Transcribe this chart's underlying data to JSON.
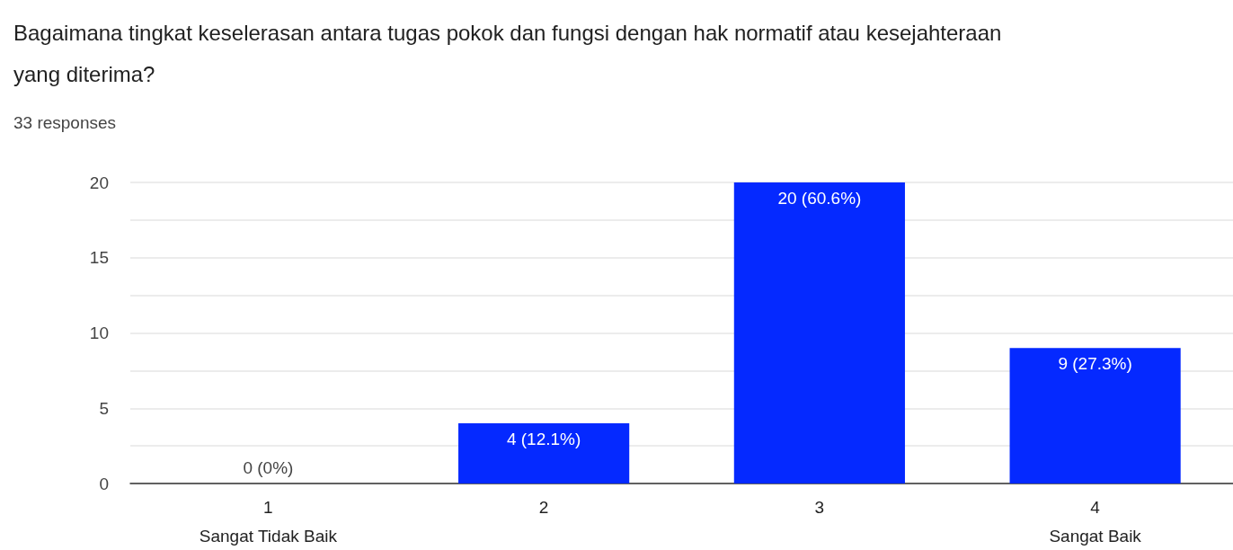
{
  "chart_data": {
    "type": "bar",
    "title": "Bagaimana tingkat keselerasan antara tugas pokok dan fungsi dengan hak normatif atau kesejahteraan yang diterima?",
    "subtitle": "33 responses",
    "categories": [
      "1\nSangat Tidak Baik",
      "2",
      "3",
      "4\nSangat Baik"
    ],
    "values": [
      0,
      4,
      20,
      9
    ],
    "color": "#0529ff",
    "value_labels": [
      "0 (0%)",
      "4 (12.1%)",
      "20 (60.6%)",
      "9 (27.3%)"
    ],
    "ylim": [
      0,
      20
    ],
    "yticks": [
      0,
      {
        "value": 2.5,
        "label": null
      },
      5,
      {
        "value": 7.5,
        "label": null
      },
      10,
      {
        "value": 12.5,
        "label": null
      },
      15,
      {
        "value": 17.5,
        "label": null
      },
      20
    ],
    "grid": "y"
  }
}
